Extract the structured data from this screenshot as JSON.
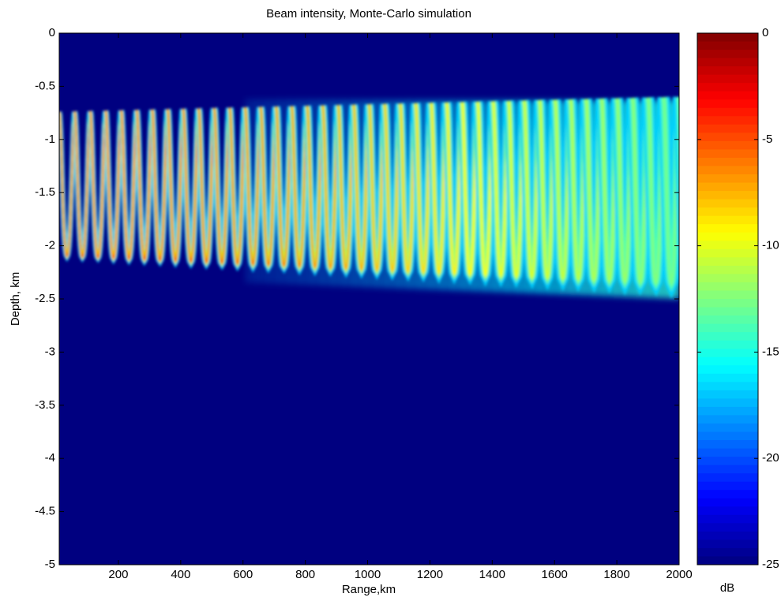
{
  "chart_data": {
    "type": "heatmap",
    "title": "Beam intensity, Monte-Carlo simulation",
    "xlabel": "Range,km",
    "ylabel": "Depth, km",
    "xlim": [
      10,
      2000
    ],
    "ylim": [
      -5,
      0
    ],
    "xticks": [
      200,
      400,
      600,
      800,
      1000,
      1200,
      1400,
      1600,
      1800,
      2000
    ],
    "yticks": [
      0,
      -0.5,
      -1,
      -1.5,
      -2,
      -2.5,
      -3,
      -3.5,
      -4,
      -4.5,
      -5
    ],
    "colormap": "jet",
    "clim": [
      -25,
      0
    ],
    "cticks": [
      0,
      -5,
      -10,
      -15,
      -20,
      -25
    ],
    "colorbar_label": "dB"
  }
}
